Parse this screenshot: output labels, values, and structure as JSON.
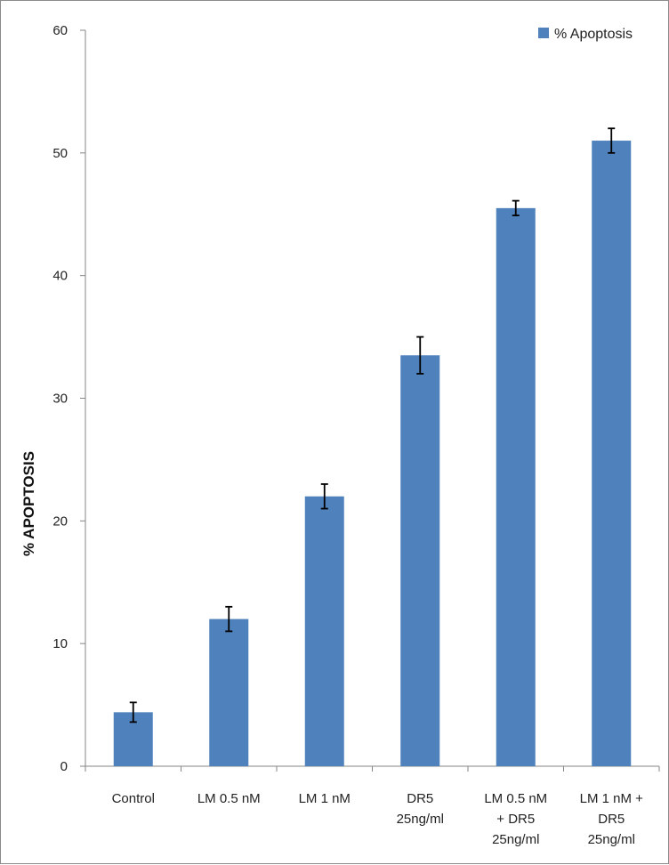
{
  "chart_data": {
    "type": "bar",
    "title": "",
    "xlabel": "",
    "ylabel": "% APOPTOSIS",
    "ylim": [
      0,
      60
    ],
    "yticks": [
      0,
      10,
      20,
      30,
      40,
      50,
      60
    ],
    "grid": false,
    "legend_position": "top-right",
    "categories": [
      [
        "Control"
      ],
      [
        "LM 0.5 nM"
      ],
      [
        "LM 1 nM"
      ],
      [
        "DR5",
        "25ng/ml"
      ],
      [
        "LM 0.5 nM",
        "+ DR5",
        "25ng/ml"
      ],
      [
        "LM 1 nM +",
        "DR5",
        "25ng/ml"
      ]
    ],
    "series": [
      {
        "name": "% Apoptosis",
        "color": "#4f81bd",
        "values": [
          4.4,
          12,
          22,
          33.5,
          45.5,
          51
        ],
        "error": [
          0.8,
          1.0,
          1.0,
          1.5,
          0.6,
          1.0
        ]
      }
    ]
  }
}
